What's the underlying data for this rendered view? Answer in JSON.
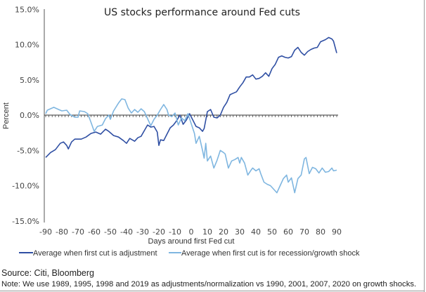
{
  "chart_data": {
    "type": "line",
    "title": "US stocks performance around Fed cuts",
    "xlabel": "Days around first Fed cut",
    "ylabel": "Percent",
    "xlim": [
      -90,
      90
    ],
    "ylim": [
      -15,
      15
    ],
    "x_ticks": [
      -90,
      -80,
      -70,
      -60,
      -50,
      -40,
      -30,
      -20,
      -10,
      0,
      10,
      20,
      30,
      40,
      50,
      60,
      70,
      80,
      90
    ],
    "x_tick_labels": [
      "-90",
      "-80",
      "-70",
      "-60",
      "-50",
      "-40",
      "-30",
      "-20",
      "-10",
      "0",
      "10",
      "20",
      "30",
      "40",
      "50",
      "60",
      "70",
      "80",
      "90"
    ],
    "y_ticks": [
      15,
      10,
      5,
      0,
      -5,
      -10,
      -15
    ],
    "y_tick_labels": [
      "15.0%",
      "10.0%",
      "5.0%",
      "0.0%",
      "-5.0%",
      "-10.0%",
      "-15.0%"
    ],
    "grid": false,
    "legend": "bottom",
    "series": [
      {
        "name": "Average when first cut is adjustment",
        "color": "#2f4fa3",
        "points": [
          [
            -90,
            -6.0
          ],
          [
            -87,
            -5.3
          ],
          [
            -84,
            -4.9
          ],
          [
            -81,
            -4.0
          ],
          [
            -79,
            -3.8
          ],
          [
            -77,
            -4.3
          ],
          [
            -76,
            -4.8
          ],
          [
            -74,
            -3.8
          ],
          [
            -72,
            -3.4
          ],
          [
            -68,
            -3.4
          ],
          [
            -65,
            -3.1
          ],
          [
            -62,
            -2.6
          ],
          [
            -59,
            -2.4
          ],
          [
            -56,
            -2.7
          ],
          [
            -53,
            -2.0
          ],
          [
            -51,
            -2.3
          ],
          [
            -48,
            -2.9
          ],
          [
            -45,
            -3.1
          ],
          [
            -42,
            -3.6
          ],
          [
            -40,
            -4.0
          ],
          [
            -38,
            -3.3
          ],
          [
            -35,
            -3.7
          ],
          [
            -33,
            -3.2
          ],
          [
            -31,
            -3.0
          ],
          [
            -29,
            -2.2
          ],
          [
            -27,
            -1.4
          ],
          [
            -25,
            -1.7
          ],
          [
            -23,
            -1.6
          ],
          [
            -21,
            -2.4
          ],
          [
            -20,
            -4.3
          ],
          [
            -19,
            -3.5
          ],
          [
            -17,
            -3.6
          ],
          [
            -15,
            -2.7
          ],
          [
            -13,
            -1.8
          ],
          [
            -11,
            -1.4
          ],
          [
            -9,
            -0.8
          ],
          [
            -7,
            0.0
          ],
          [
            -5,
            -1.3
          ],
          [
            -3,
            -0.7
          ],
          [
            -1,
            0.2
          ],
          [
            1,
            -0.7
          ],
          [
            3,
            -1.6
          ],
          [
            5,
            -1.8
          ],
          [
            7,
            -2.3
          ],
          [
            8,
            -1.9
          ],
          [
            10,
            0.5
          ],
          [
            12,
            0.8
          ],
          [
            14,
            -0.3
          ],
          [
            16,
            -0.4
          ],
          [
            18,
            0.0
          ],
          [
            20,
            1.1
          ],
          [
            22,
            1.8
          ],
          [
            24,
            2.9
          ],
          [
            26,
            3.1
          ],
          [
            28,
            3.3
          ],
          [
            30,
            4.0
          ],
          [
            32,
            4.6
          ],
          [
            34,
            5.4
          ],
          [
            36,
            5.4
          ],
          [
            38,
            5.7
          ],
          [
            40,
            5.1
          ],
          [
            42,
            5.2
          ],
          [
            44,
            5.5
          ],
          [
            46,
            6.0
          ],
          [
            48,
            5.5
          ],
          [
            50,
            6.6
          ],
          [
            52,
            7.2
          ],
          [
            54,
            8.2
          ],
          [
            56,
            8.4
          ],
          [
            58,
            8.2
          ],
          [
            60,
            8.1
          ],
          [
            62,
            8.3
          ],
          [
            64,
            9.2
          ],
          [
            66,
            9.6
          ],
          [
            68,
            8.9
          ],
          [
            70,
            8.5
          ],
          [
            72,
            9.0
          ],
          [
            74,
            9.3
          ],
          [
            76,
            9.5
          ],
          [
            78,
            9.6
          ],
          [
            80,
            10.4
          ],
          [
            83,
            10.7
          ],
          [
            85,
            11.0
          ],
          [
            87,
            10.8
          ],
          [
            88,
            10.5
          ],
          [
            90,
            8.8
          ]
        ]
      },
      {
        "name": "Average when first cut is for recession/growth shock",
        "color": "#7fb6e0",
        "points": [
          [
            -90,
            0.2
          ],
          [
            -89,
            0.7
          ],
          [
            -85,
            1.1
          ],
          [
            -82,
            0.8
          ],
          [
            -80,
            0.6
          ],
          [
            -77,
            0.7
          ],
          [
            -75,
            0.1
          ],
          [
            -72,
            -0.3
          ],
          [
            -70,
            -0.3
          ],
          [
            -69,
            0.6
          ],
          [
            -66,
            0.5
          ],
          [
            -64,
            0.2
          ],
          [
            -62,
            -1.0
          ],
          [
            -60,
            -2.3
          ],
          [
            -58,
            -1.6
          ],
          [
            -55,
            -1.4
          ],
          [
            -53,
            -0.5
          ],
          [
            -51,
            0.0
          ],
          [
            -50,
            -0.6
          ],
          [
            -48,
            0.6
          ],
          [
            -45,
            1.7
          ],
          [
            -43,
            2.3
          ],
          [
            -41,
            2.2
          ],
          [
            -39,
            1.0
          ],
          [
            -37,
            0.3
          ],
          [
            -35,
            0.8
          ],
          [
            -33,
            0.4
          ],
          [
            -31,
            0.9
          ],
          [
            -29,
            0.5
          ],
          [
            -27,
            -0.5
          ],
          [
            -25,
            -1.5
          ],
          [
            -23,
            -0.6
          ],
          [
            -21,
            0.0
          ],
          [
            -19,
            0.8
          ],
          [
            -17,
            1.5
          ],
          [
            -15,
            0.8
          ],
          [
            -14,
            0.0
          ],
          [
            -12,
            -0.2
          ],
          [
            -10,
            0.3
          ],
          [
            -8,
            -1.4
          ],
          [
            -6,
            -0.4
          ],
          [
            -4,
            -0.8
          ],
          [
            -2,
            0.2
          ],
          [
            0,
            -1.2
          ],
          [
            2,
            -2.6
          ],
          [
            3,
            -4.0
          ],
          [
            5,
            -3.0
          ],
          [
            7,
            -5.0
          ],
          [
            8,
            -6.1
          ],
          [
            9,
            -4.0
          ],
          [
            10,
            -6.5
          ],
          [
            12,
            -5.8
          ],
          [
            14,
            -7.5
          ],
          [
            16,
            -6.4
          ],
          [
            18,
            -5.0
          ],
          [
            20,
            -5.3
          ],
          [
            21,
            -5.5
          ],
          [
            23,
            -7.5
          ],
          [
            25,
            -6.5
          ],
          [
            27,
            -6.3
          ],
          [
            29,
            -6.0
          ],
          [
            30,
            -6.8
          ],
          [
            31,
            -6.0
          ],
          [
            33,
            -6.8
          ],
          [
            35,
            -8.5
          ],
          [
            37,
            -7.8
          ],
          [
            38,
            -7.5
          ],
          [
            40,
            -7.9
          ],
          [
            42,
            -7.6
          ],
          [
            43,
            -8.3
          ],
          [
            45,
            -9.5
          ],
          [
            47,
            -9.8
          ],
          [
            49,
            -10.0
          ],
          [
            51,
            -10.5
          ],
          [
            53,
            -11.0
          ],
          [
            55,
            -10.0
          ],
          [
            57,
            -9.0
          ],
          [
            59,
            -8.5
          ],
          [
            60,
            -9.5
          ],
          [
            62,
            -8.9
          ],
          [
            64,
            -11.0
          ],
          [
            66,
            -9.0
          ],
          [
            68,
            -8.5
          ],
          [
            70,
            -6.2
          ],
          [
            71,
            -6.0
          ],
          [
            73,
            -8.3
          ],
          [
            75,
            -7.4
          ],
          [
            77,
            -7.6
          ],
          [
            79,
            -8.2
          ],
          [
            81,
            -7.5
          ],
          [
            83,
            -8.1
          ],
          [
            85,
            -8.0
          ],
          [
            87,
            -7.5
          ],
          [
            88,
            -7.9
          ],
          [
            90,
            -7.8
          ]
        ]
      }
    ]
  },
  "footer": {
    "source": "Source: Citi, Bloomberg",
    "note": "Note: We use 1989, 1995, 1998 and 2019 as adjustments/normalization vs 1990, 2001, 2007, 2020 on growth shocks."
  }
}
